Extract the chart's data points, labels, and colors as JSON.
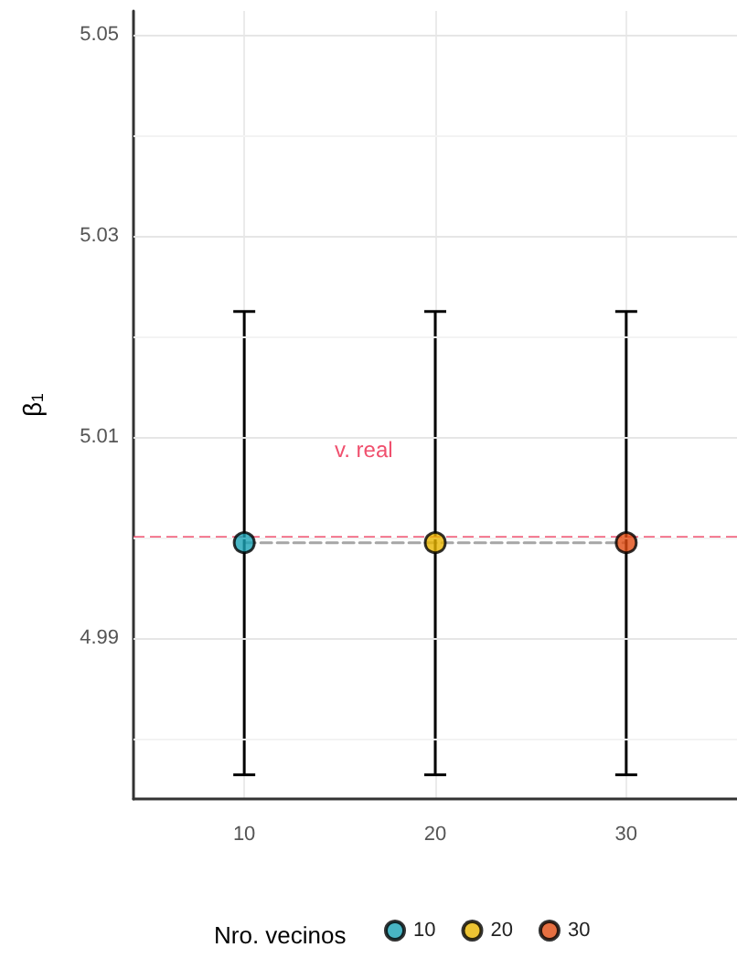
{
  "chart_data": {
    "type": "scatter",
    "ylabel": "β$_{1}$",
    "legend_title": "Nro. vecinos",
    "categories": [
      "10",
      "20",
      "30"
    ],
    "series": [
      {
        "name": "10",
        "color": "#1aa3b5",
        "values": [
          4.9995,
          null,
          null
        ],
        "errors": [
          [
            4.9764,
            5.0225
          ],
          null,
          null
        ]
      },
      {
        "name": "20",
        "color": "#e8b500",
        "values": [
          null,
          4.9995,
          null
        ],
        "errors": [
          null,
          [
            4.9764,
            5.0225
          ],
          null
        ]
      },
      {
        "name": "30",
        "color": "#e04b12",
        "values": [
          null,
          null,
          4.9995
        ],
        "errors": [
          null,
          null,
          [
            4.9764,
            5.0225
          ]
        ]
      },
      {
        "type": "line",
        "color": "#a6a6a6",
        "line_style": "dashed",
        "marker": "none",
        "values": [
          4.9995,
          4.9995,
          4.9995
        ]
      }
    ],
    "ylim": [
      4.974,
      5.0524
    ],
    "yticks": [
      {
        "value": 4.98,
        "label": null
      },
      4.99,
      {
        "value": 5.0,
        "label": null
      },
      5.01,
      {
        "value": 5.02,
        "label": null
      },
      5.03,
      {
        "value": 5.04,
        "label": null
      },
      5.05
    ],
    "ref_lines": [
      {
        "axis": "y",
        "value": 5.0,
        "label": "v. real",
        "color": "#f0506e",
        "line_style": "dashed"
      }
    ],
    "grid": true,
    "legend": "bottom",
    "marker": "circle"
  }
}
